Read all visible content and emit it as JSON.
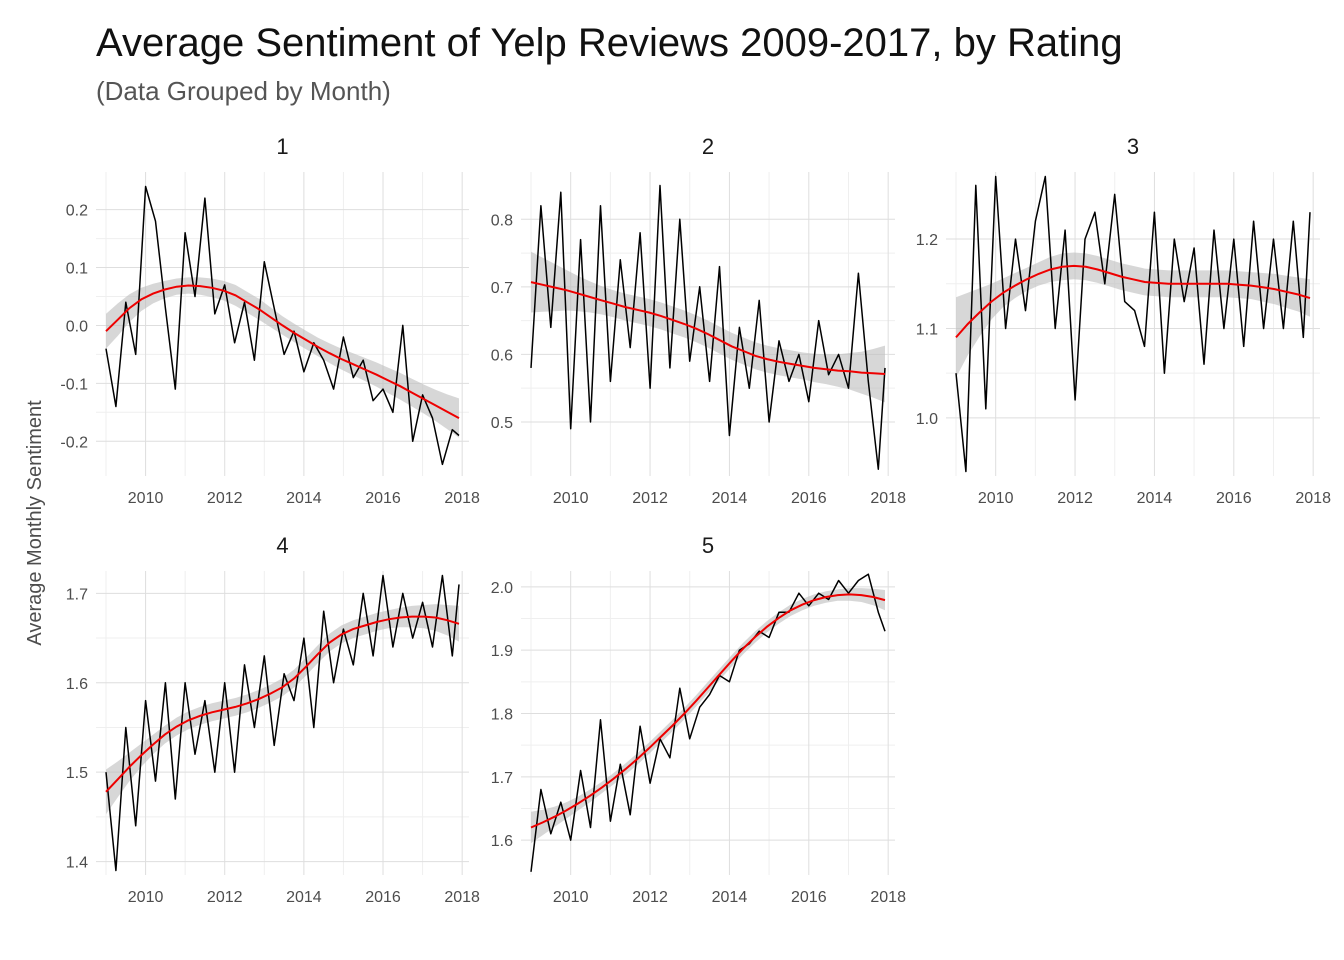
{
  "chart_data": {
    "type": "line",
    "title": "Average Sentiment of Yelp Reviews 2009-2017, by Rating",
    "subtitle": "(Data Grouped by Month)",
    "ylabel": "Average Monthly Sentiment",
    "xlabel": "",
    "x_range": [
      2009,
      2017.92
    ],
    "x_ticks": [
      2010,
      2012,
      2014,
      2016,
      2018
    ],
    "smooth_color": "#ee0000",
    "band_color": "#bdbdbd",
    "line_color": "#000000",
    "panels": [
      {
        "label": "1",
        "ylim": [
          -0.26,
          0.265
        ],
        "y_ticks": [
          -0.2,
          -0.1,
          0.0,
          0.1,
          0.2
        ],
        "y_tick_labels": [
          "-0.2",
          "-0.1",
          "0.0",
          "0.1",
          "0.2"
        ],
        "x": [
          2009.0,
          2009.25,
          2009.5,
          2009.75,
          2010.0,
          2010.25,
          2010.5,
          2010.75,
          2011.0,
          2011.25,
          2011.5,
          2011.75,
          2012.0,
          2012.25,
          2012.5,
          2012.75,
          2013.0,
          2013.25,
          2013.5,
          2013.75,
          2014.0,
          2014.25,
          2014.5,
          2014.75,
          2015.0,
          2015.25,
          2015.5,
          2015.75,
          2016.0,
          2016.25,
          2016.5,
          2016.75,
          2017.0,
          2017.25,
          2017.5,
          2017.75,
          2017.92
        ],
        "values": [
          -0.04,
          -0.14,
          0.04,
          -0.05,
          0.24,
          0.18,
          0.03,
          -0.11,
          0.16,
          0.05,
          0.22,
          0.02,
          0.07,
          -0.03,
          0.04,
          -0.06,
          0.11,
          0.03,
          -0.05,
          -0.01,
          -0.08,
          -0.03,
          -0.06,
          -0.11,
          -0.02,
          -0.09,
          -0.06,
          -0.13,
          -0.11,
          -0.15,
          0.0,
          -0.2,
          -0.12,
          -0.16,
          -0.24,
          -0.18,
          -0.19
        ],
        "smooth": [
          -0.01,
          0.01,
          0.03,
          0.045,
          0.055,
          0.062,
          0.067,
          0.069,
          0.068,
          0.065,
          0.06,
          0.052,
          0.04,
          0.028,
          0.014,
          0.0,
          -0.013,
          -0.025,
          -0.037,
          -0.048,
          -0.058,
          -0.067,
          -0.076,
          -0.085,
          -0.095,
          -0.105,
          -0.116,
          -0.127,
          -0.138,
          -0.149,
          -0.16
        ],
        "band": [
          0.03,
          0.028,
          0.024,
          0.02,
          0.017,
          0.015,
          0.014,
          0.014,
          0.015,
          0.016,
          0.017,
          0.018,
          0.018,
          0.018,
          0.017,
          0.016,
          0.016,
          0.016,
          0.016,
          0.017,
          0.018,
          0.019,
          0.02,
          0.021,
          0.022,
          0.023,
          0.024,
          0.025,
          0.027,
          0.03,
          0.034
        ]
      },
      {
        "label": "2",
        "ylim": [
          0.42,
          0.87
        ],
        "y_ticks": [
          0.5,
          0.6,
          0.7,
          0.8
        ],
        "y_tick_labels": [
          "0.5",
          "0.6",
          "0.7",
          "0.8"
        ],
        "x": [
          2009.0,
          2009.25,
          2009.5,
          2009.75,
          2010.0,
          2010.25,
          2010.5,
          2010.75,
          2011.0,
          2011.25,
          2011.5,
          2011.75,
          2012.0,
          2012.25,
          2012.5,
          2012.75,
          2013.0,
          2013.25,
          2013.5,
          2013.75,
          2014.0,
          2014.25,
          2014.5,
          2014.75,
          2015.0,
          2015.25,
          2015.5,
          2015.75,
          2016.0,
          2016.25,
          2016.5,
          2016.75,
          2017.0,
          2017.25,
          2017.5,
          2017.75,
          2017.92
        ],
        "values": [
          0.58,
          0.82,
          0.64,
          0.84,
          0.49,
          0.77,
          0.5,
          0.82,
          0.56,
          0.74,
          0.61,
          0.78,
          0.55,
          0.85,
          0.58,
          0.8,
          0.59,
          0.7,
          0.56,
          0.73,
          0.48,
          0.64,
          0.55,
          0.68,
          0.5,
          0.62,
          0.56,
          0.6,
          0.53,
          0.65,
          0.57,
          0.6,
          0.55,
          0.72,
          0.56,
          0.43,
          0.58
        ],
        "smooth": [
          0.707,
          0.703,
          0.699,
          0.695,
          0.69,
          0.685,
          0.68,
          0.675,
          0.67,
          0.666,
          0.662,
          0.657,
          0.651,
          0.645,
          0.638,
          0.63,
          0.621,
          0.612,
          0.605,
          0.598,
          0.593,
          0.589,
          0.586,
          0.583,
          0.58,
          0.578,
          0.576,
          0.575,
          0.573,
          0.572,
          0.571
        ],
        "band": [
          0.045,
          0.04,
          0.035,
          0.03,
          0.026,
          0.023,
          0.021,
          0.02,
          0.02,
          0.02,
          0.02,
          0.02,
          0.02,
          0.02,
          0.02,
          0.02,
          0.02,
          0.02,
          0.02,
          0.02,
          0.02,
          0.02,
          0.02,
          0.02,
          0.021,
          0.022,
          0.024,
          0.027,
          0.031,
          0.036,
          0.042
        ]
      },
      {
        "label": "3",
        "ylim": [
          0.935,
          1.275
        ],
        "y_ticks": [
          1.0,
          1.1,
          1.2
        ],
        "y_tick_labels": [
          "1.0",
          "1.1",
          "1.2"
        ],
        "x": [
          2009.0,
          2009.25,
          2009.5,
          2009.75,
          2010.0,
          2010.25,
          2010.5,
          2010.75,
          2011.0,
          2011.25,
          2011.5,
          2011.75,
          2012.0,
          2012.25,
          2012.5,
          2012.75,
          2013.0,
          2013.25,
          2013.5,
          2013.75,
          2014.0,
          2014.25,
          2014.5,
          2014.75,
          2015.0,
          2015.25,
          2015.5,
          2015.75,
          2016.0,
          2016.25,
          2016.5,
          2016.75,
          2017.0,
          2017.25,
          2017.5,
          2017.75,
          2017.92
        ],
        "values": [
          1.05,
          0.94,
          1.26,
          1.01,
          1.27,
          1.1,
          1.2,
          1.12,
          1.22,
          1.27,
          1.1,
          1.21,
          1.02,
          1.2,
          1.23,
          1.15,
          1.25,
          1.13,
          1.12,
          1.08,
          1.23,
          1.05,
          1.2,
          1.13,
          1.19,
          1.06,
          1.21,
          1.1,
          1.2,
          1.08,
          1.22,
          1.1,
          1.2,
          1.1,
          1.22,
          1.09,
          1.23
        ],
        "smooth": [
          1.09,
          1.105,
          1.118,
          1.13,
          1.14,
          1.148,
          1.155,
          1.161,
          1.166,
          1.169,
          1.17,
          1.169,
          1.166,
          1.162,
          1.158,
          1.155,
          1.152,
          1.151,
          1.15,
          1.15,
          1.15,
          1.15,
          1.15,
          1.15,
          1.149,
          1.148,
          1.146,
          1.144,
          1.141,
          1.138,
          1.134
        ],
        "band": [
          0.045,
          0.035,
          0.027,
          0.02,
          0.016,
          0.014,
          0.013,
          0.013,
          0.014,
          0.015,
          0.015,
          0.015,
          0.015,
          0.015,
          0.015,
          0.015,
          0.015,
          0.015,
          0.015,
          0.015,
          0.015,
          0.015,
          0.015,
          0.015,
          0.015,
          0.015,
          0.016,
          0.017,
          0.018,
          0.019,
          0.021
        ]
      },
      {
        "label": "4",
        "ylim": [
          1.385,
          1.725
        ],
        "y_ticks": [
          1.4,
          1.5,
          1.6,
          1.7
        ],
        "y_tick_labels": [
          "1.4",
          "1.5",
          "1.6",
          "1.7"
        ],
        "x": [
          2009.0,
          2009.25,
          2009.5,
          2009.75,
          2010.0,
          2010.25,
          2010.5,
          2010.75,
          2011.0,
          2011.25,
          2011.5,
          2011.75,
          2012.0,
          2012.25,
          2012.5,
          2012.75,
          2013.0,
          2013.25,
          2013.5,
          2013.75,
          2014.0,
          2014.25,
          2014.5,
          2014.75,
          2015.0,
          2015.25,
          2015.5,
          2015.75,
          2016.0,
          2016.25,
          2016.5,
          2016.75,
          2017.0,
          2017.25,
          2017.5,
          2017.75,
          2017.92
        ],
        "values": [
          1.5,
          1.39,
          1.55,
          1.44,
          1.58,
          1.49,
          1.6,
          1.47,
          1.6,
          1.52,
          1.58,
          1.5,
          1.6,
          1.5,
          1.62,
          1.55,
          1.63,
          1.53,
          1.61,
          1.58,
          1.65,
          1.55,
          1.68,
          1.6,
          1.66,
          1.62,
          1.7,
          1.63,
          1.72,
          1.64,
          1.7,
          1.65,
          1.69,
          1.64,
          1.72,
          1.63,
          1.71
        ],
        "smooth": [
          1.478,
          1.492,
          1.506,
          1.519,
          1.531,
          1.542,
          1.551,
          1.558,
          1.563,
          1.567,
          1.57,
          1.573,
          1.577,
          1.582,
          1.588,
          1.595,
          1.605,
          1.618,
          1.632,
          1.645,
          1.654,
          1.66,
          1.664,
          1.668,
          1.671,
          1.673,
          1.674,
          1.674,
          1.673,
          1.67,
          1.666
        ],
        "band": [
          0.025,
          0.02,
          0.016,
          0.013,
          0.011,
          0.01,
          0.01,
          0.01,
          0.01,
          0.01,
          0.01,
          0.01,
          0.01,
          0.01,
          0.01,
          0.01,
          0.01,
          0.01,
          0.01,
          0.01,
          0.01,
          0.01,
          0.01,
          0.01,
          0.01,
          0.011,
          0.012,
          0.013,
          0.015,
          0.017,
          0.02
        ]
      },
      {
        "label": "5",
        "ylim": [
          1.545,
          2.025
        ],
        "y_ticks": [
          1.6,
          1.7,
          1.8,
          1.9,
          2.0
        ],
        "y_tick_labels": [
          "1.6",
          "1.7",
          "1.8",
          "1.9",
          "2.0"
        ],
        "x": [
          2009.0,
          2009.25,
          2009.5,
          2009.75,
          2010.0,
          2010.25,
          2010.5,
          2010.75,
          2011.0,
          2011.25,
          2011.5,
          2011.75,
          2012.0,
          2012.25,
          2012.5,
          2012.75,
          2013.0,
          2013.25,
          2013.5,
          2013.75,
          2014.0,
          2014.25,
          2014.5,
          2014.75,
          2015.0,
          2015.25,
          2015.5,
          2015.75,
          2016.0,
          2016.25,
          2016.5,
          2016.75,
          2017.0,
          2017.25,
          2017.5,
          2017.75,
          2017.92
        ],
        "values": [
          1.55,
          1.68,
          1.61,
          1.66,
          1.6,
          1.71,
          1.62,
          1.79,
          1.63,
          1.72,
          1.64,
          1.78,
          1.69,
          1.76,
          1.73,
          1.84,
          1.76,
          1.81,
          1.83,
          1.86,
          1.85,
          1.9,
          1.91,
          1.93,
          1.92,
          1.96,
          1.96,
          1.99,
          1.97,
          1.99,
          1.98,
          2.01,
          1.99,
          2.01,
          2.02,
          1.96,
          1.93
        ],
        "smooth": [
          1.62,
          1.628,
          1.637,
          1.647,
          1.658,
          1.67,
          1.683,
          1.697,
          1.712,
          1.728,
          1.745,
          1.763,
          1.781,
          1.8,
          1.82,
          1.841,
          1.862,
          1.883,
          1.903,
          1.921,
          1.937,
          1.951,
          1.963,
          1.972,
          1.979,
          1.984,
          1.987,
          1.988,
          1.987,
          1.984,
          1.979
        ],
        "band": [
          0.025,
          0.02,
          0.016,
          0.013,
          0.011,
          0.01,
          0.009,
          0.009,
          0.009,
          0.009,
          0.009,
          0.009,
          0.009,
          0.009,
          0.009,
          0.009,
          0.009,
          0.009,
          0.009,
          0.009,
          0.009,
          0.009,
          0.009,
          0.009,
          0.009,
          0.009,
          0.009,
          0.01,
          0.011,
          0.013,
          0.016
        ]
      }
    ]
  }
}
